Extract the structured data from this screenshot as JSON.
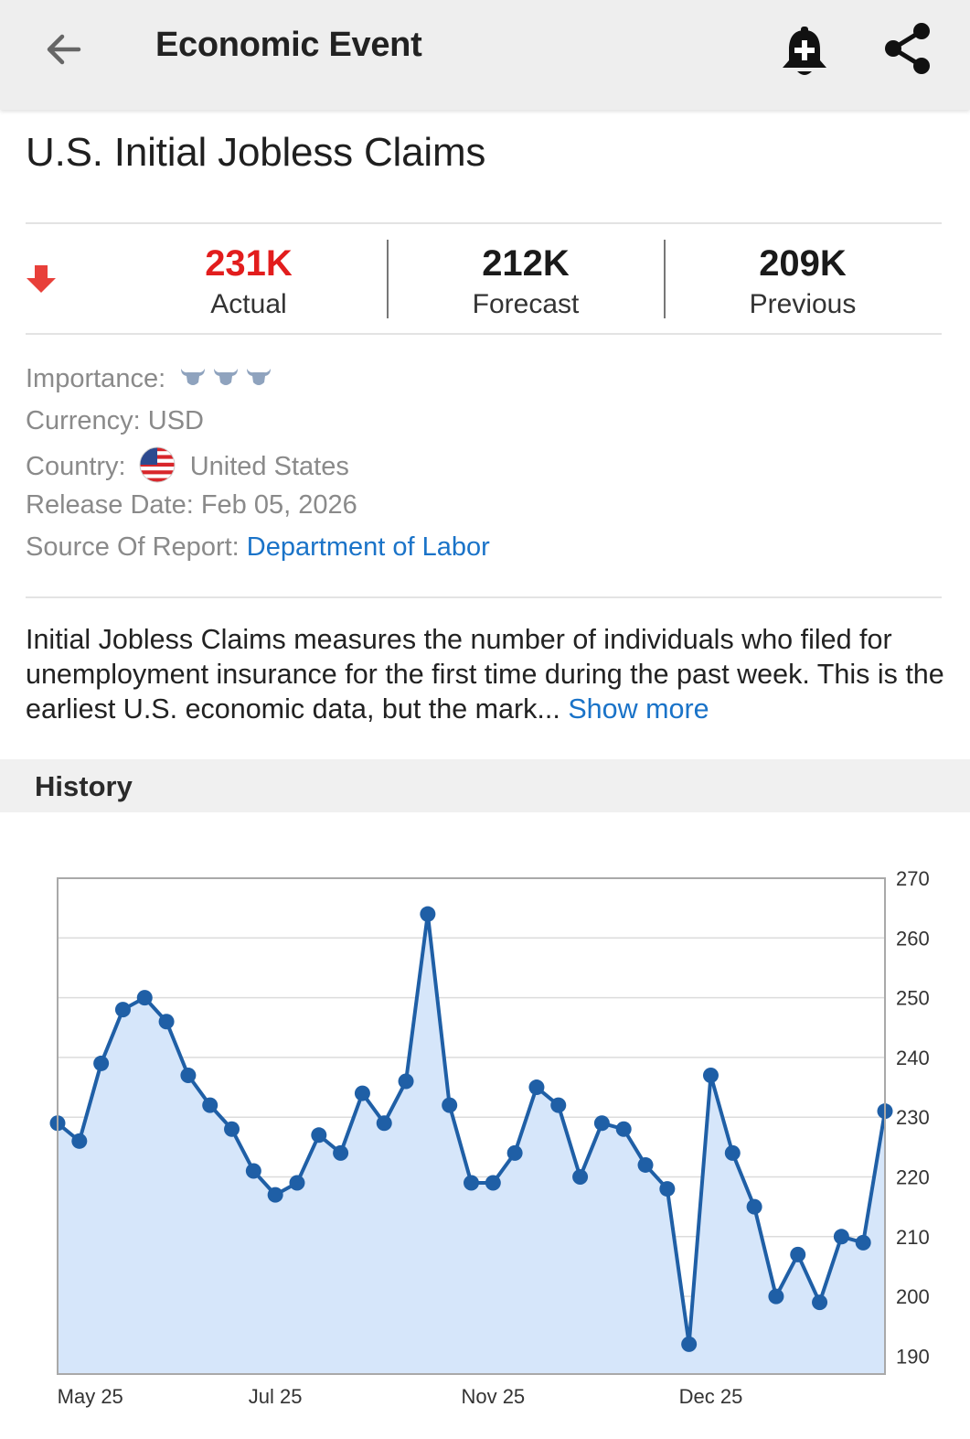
{
  "appbar": {
    "title": "Economic Event",
    "back_icon": "arrow-left-icon",
    "alert_icon": "bell-plus-icon",
    "share_icon": "share-icon"
  },
  "event": {
    "title": "U.S. Initial Jobless Claims",
    "trend_icon": "arrow-down-icon",
    "trend_color": "#e8403a",
    "actual": {
      "value": "231K",
      "label": "Actual",
      "color": "#e21d1d"
    },
    "forecast": {
      "value": "212K",
      "label": "Forecast"
    },
    "previous": {
      "value": "209K",
      "label": "Previous"
    }
  },
  "details": {
    "importance_label": "Importance:",
    "importance_level": 3,
    "importance_icon": "bull-icon",
    "currency_label": "Currency:",
    "currency_value": "USD",
    "country_label": "Country:",
    "country_flag_icon": "us-flag-icon",
    "country_value": "United States",
    "release_label": "Release Date:",
    "release_value": "Feb 05, 2026",
    "source_label": "Source Of Report:",
    "source_value": "Department of Labor"
  },
  "description": {
    "text": "Initial Jobless Claims measures the number of individuals who filed for unemployment insurance for the first time during the past week. This is the earliest U.S. economic data, but the mark...",
    "more_label": "Show more"
  },
  "history": {
    "title": "History"
  },
  "colors": {
    "link": "#1a73c8",
    "chart_line": "#1f5fa6",
    "chart_fill": "#d6e6fa"
  },
  "chart_data": {
    "type": "area",
    "x_tick_labels": [
      "May 25",
      "Jul 25",
      "Nov 25",
      "Dec 25"
    ],
    "x_tick_index": [
      1.5,
      10,
      20,
      30
    ],
    "y_ticks": [
      190,
      200,
      210,
      220,
      230,
      240,
      250,
      260,
      270
    ],
    "ylim": [
      187,
      270
    ],
    "y_axis_position": "right",
    "grid": true,
    "series": [
      {
        "values": [
          229,
          226,
          239,
          248,
          250,
          246,
          237,
          232,
          228,
          221,
          217,
          219,
          227,
          224,
          234,
          229,
          236,
          264,
          232,
          219,
          219,
          224,
          235,
          232,
          220,
          229,
          228,
          222,
          218,
          192,
          237,
          224,
          215,
          200,
          207,
          199,
          210,
          209,
          231
        ]
      }
    ]
  }
}
